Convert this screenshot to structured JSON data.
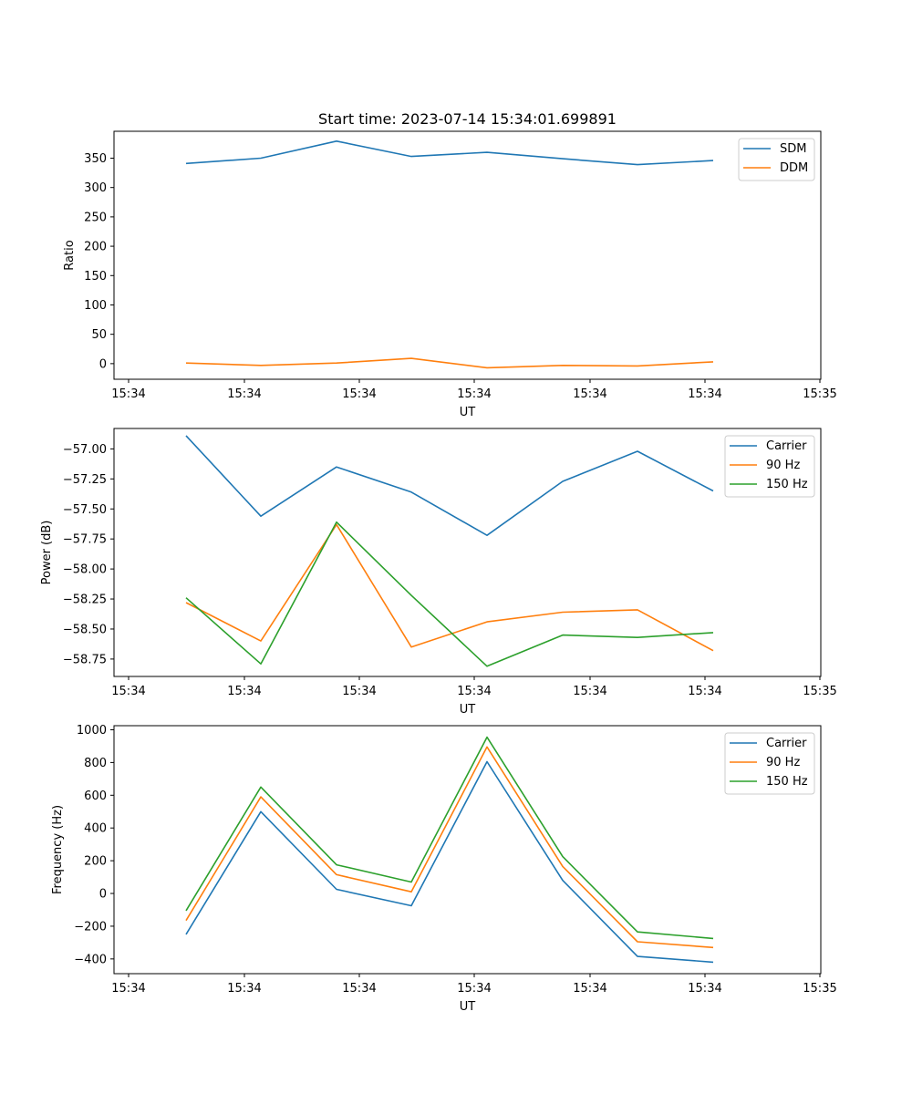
{
  "chart_data": [
    {
      "type": "line",
      "title": "Start time: 2023-07-14 15:34:01.699891",
      "xlabel": "UT",
      "ylabel": "Ratio",
      "legend": "top-right",
      "x_ticks": [
        "15:34",
        "15:34",
        "15:34",
        "15:34",
        "15:34",
        "15:34",
        "15:34",
        "15:35"
      ],
      "y_ticks": [
        0,
        50,
        100,
        150,
        200,
        250,
        300,
        350
      ],
      "y_tick_labels": [
        "0",
        "50",
        "100",
        "150",
        "200",
        "250",
        "300",
        "350"
      ],
      "ylim": [
        -26.6,
        395.8
      ],
      "series": [
        {
          "name": "SDM",
          "color": "#1f77b4",
          "values": [
            341,
            350,
            379,
            353,
            360,
            349,
            339,
            346
          ]
        },
        {
          "name": "DDM",
          "color": "#ff7f0e",
          "values": [
            1,
            -3,
            1,
            9,
            -7,
            -3,
            -4,
            3
          ]
        }
      ]
    },
    {
      "type": "line",
      "title": "",
      "xlabel": "UT",
      "ylabel": "Power (dB)",
      "legend": "top-right",
      "x_ticks": [
        "15:34",
        "15:34",
        "15:34",
        "15:34",
        "15:34",
        "15:34",
        "15:34",
        "15:35"
      ],
      "y_ticks": [
        -57.0,
        -57.25,
        -57.5,
        -57.75,
        -58.0,
        -58.25,
        -58.5,
        -58.75
      ],
      "y_tick_labels": [
        "−57.00",
        "−57.25",
        "−57.50",
        "−57.75",
        "−58.00",
        "−58.25",
        "−58.50",
        "−58.75"
      ],
      "ylim": [
        -58.895,
        -56.83
      ],
      "series": [
        {
          "name": "Carrier",
          "color": "#1f77b4",
          "values": [
            -56.89,
            -57.56,
            -57.15,
            -57.36,
            -57.72,
            -57.27,
            -57.02,
            -57.35
          ]
        },
        {
          "name": "90 Hz",
          "color": "#ff7f0e",
          "values": [
            -58.28,
            -58.6,
            -57.63,
            -58.65,
            -58.44,
            -58.36,
            -58.34,
            -58.68
          ]
        },
        {
          "name": "150 Hz",
          "color": "#2ca02c",
          "values": [
            -58.24,
            -58.79,
            -57.61,
            -58.22,
            -58.81,
            -58.55,
            -58.57,
            -58.53
          ]
        }
      ]
    },
    {
      "type": "line",
      "title": "",
      "xlabel": "UT",
      "ylabel": "Frequency (Hz)",
      "legend": "top-right",
      "x_ticks": [
        "15:34",
        "15:34",
        "15:34",
        "15:34",
        "15:34",
        "15:34",
        "15:34",
        "15:35"
      ],
      "y_ticks": [
        -400,
        -200,
        0,
        200,
        400,
        600,
        800,
        1000
      ],
      "y_tick_labels": [
        "−400",
        "−200",
        "0",
        "200",
        "400",
        "600",
        "800",
        "1000"
      ],
      "ylim": [
        -490,
        1025
      ],
      "series": [
        {
          "name": "Carrier",
          "color": "#1f77b4",
          "values": [
            -250,
            500,
            25,
            -75,
            805,
            80,
            -385,
            -420
          ]
        },
        {
          "name": "90 Hz",
          "color": "#ff7f0e",
          "values": [
            -165,
            590,
            115,
            10,
            895,
            165,
            -295,
            -330
          ]
        },
        {
          "name": "150 Hz",
          "color": "#2ca02c",
          "values": [
            -105,
            650,
            175,
            70,
            955,
            225,
            -235,
            -275
          ]
        }
      ]
    }
  ]
}
